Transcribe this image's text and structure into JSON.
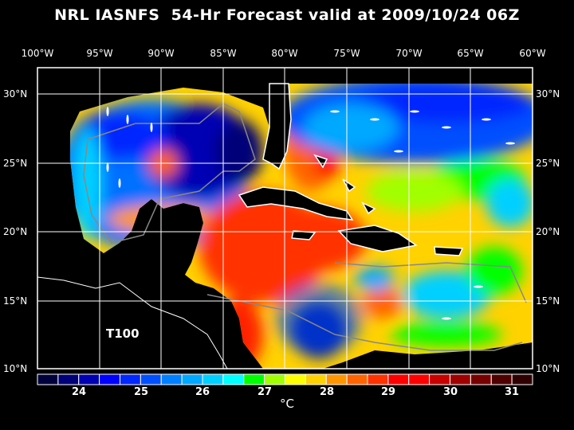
{
  "title": "NRL IASNFS  54-Hr Forecast valid at 2009/10/24 06Z",
  "longitude_labels": [
    "100°W",
    "95°W",
    "90°W",
    "85°W",
    "80°W",
    "75°W",
    "70°W",
    "65°W",
    "60°W"
  ],
  "latitude_labels": [
    "30°N",
    "25°N",
    "20°N",
    "15°N",
    "10°N"
  ],
  "layer_label": "T100",
  "colorbar": {
    "tick_labels": [
      "24",
      "25",
      "26",
      "27",
      "28",
      "29",
      "30",
      "31"
    ],
    "unit": "°C",
    "colors": [
      "#00003c",
      "#000078",
      "#0000b4",
      "#0000ff",
      "#0028ff",
      "#0050ff",
      "#0080ff",
      "#00a8ff",
      "#00d0ff",
      "#00ffff",
      "#00ff00",
      "#a0ff00",
      "#ffff00",
      "#ffd200",
      "#ff9600",
      "#ff6400",
      "#ff3200",
      "#ff0000",
      "#ff0000",
      "#c80000",
      "#a00000",
      "#780000",
      "#500000",
      "#300000"
    ]
  }
}
